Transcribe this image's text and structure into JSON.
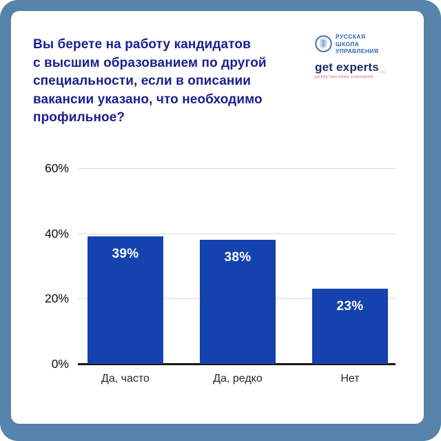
{
  "frame": {
    "border_color": "#5684ab",
    "card_bg": "#ffffff"
  },
  "header": {
    "title": "Вы берете на работу кандидатов\nс высшим образованием по другой\nспециальности, если в описании\nвакансии указано, что необходимо\nпрофильное?",
    "title_color": "#1a1f8f"
  },
  "logos": {
    "rsu": {
      "name": "РУССКАЯ\nШКОЛА\nУПРАВЛЕНИЯ",
      "color": "#2e64b2"
    },
    "get_experts": {
      "wordmark": "get experts",
      "underscore": "_",
      "tagline": "рекрутинговая компания",
      "wordmark_color": "#1e2a5e",
      "underscore_color": "#3fbfb4",
      "tagline_color": "#d06a80"
    }
  },
  "chart_data": {
    "type": "bar",
    "title": "Вы берете на работу кандидатов с высшим образованием по другой специальности, если в описании вакансии указано, что необходимо профильное?",
    "categories": [
      "Да, часто",
      "Да, редко",
      "Нет"
    ],
    "values": [
      39,
      38,
      23
    ],
    "value_labels": [
      "39%",
      "38%",
      "23%"
    ],
    "y_ticks": [
      "60%",
      "40%",
      "20%",
      "0%"
    ],
    "ylim": [
      0,
      60
    ],
    "xlabel": "",
    "ylabel": "",
    "grid": true,
    "legend": "none",
    "bar_color": "#1543ae",
    "value_label_color": "#ffffff",
    "gridline_color": "#d9d9d9",
    "axis_color": "#161616"
  }
}
